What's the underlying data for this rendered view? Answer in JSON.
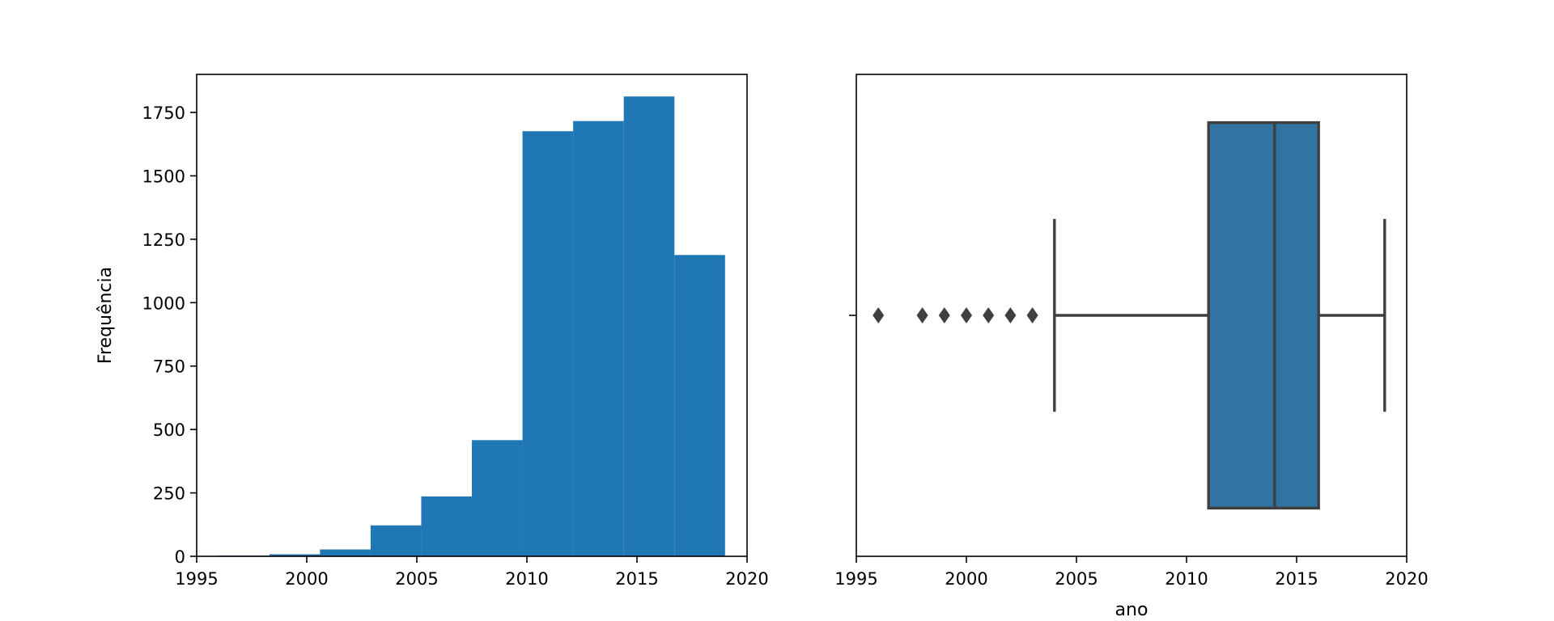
{
  "chart_data": [
    {
      "type": "histogram",
      "title": "",
      "xlabel": "",
      "ylabel": "Frequência",
      "xlim": [
        1995,
        2020
      ],
      "ylim": [
        0,
        1900
      ],
      "xticks": [
        1995,
        2000,
        2005,
        2010,
        2015,
        2020
      ],
      "yticks": [
        0,
        250,
        500,
        750,
        1000,
        1250,
        1500,
        1750
      ],
      "bin_edges": [
        1996.0,
        1998.3,
        2000.6,
        2002.9,
        2005.2,
        2007.5,
        2009.8,
        2012.1,
        2014.4,
        2016.7,
        2019.0
      ],
      "values": [
        3,
        8,
        27,
        122,
        236,
        458,
        1676,
        1716,
        1813,
        1188
      ],
      "color": "#1f77b4",
      "grid": false
    },
    {
      "type": "boxplot",
      "title": "",
      "xlabel": "ano",
      "ylabel": "",
      "xlim": [
        1995,
        2020
      ],
      "xticks": [
        1995,
        2000,
        2005,
        2010,
        2015,
        2020
      ],
      "whisker_low": 2004,
      "q1": 2011,
      "median": 2014,
      "q3": 2016,
      "whisker_high": 2019,
      "outliers": [
        1996,
        1998,
        1999,
        2000,
        2001,
        2002,
        2003
      ],
      "box_color": "#3274a1",
      "line_color": "#3f3f3f",
      "grid": false
    }
  ]
}
